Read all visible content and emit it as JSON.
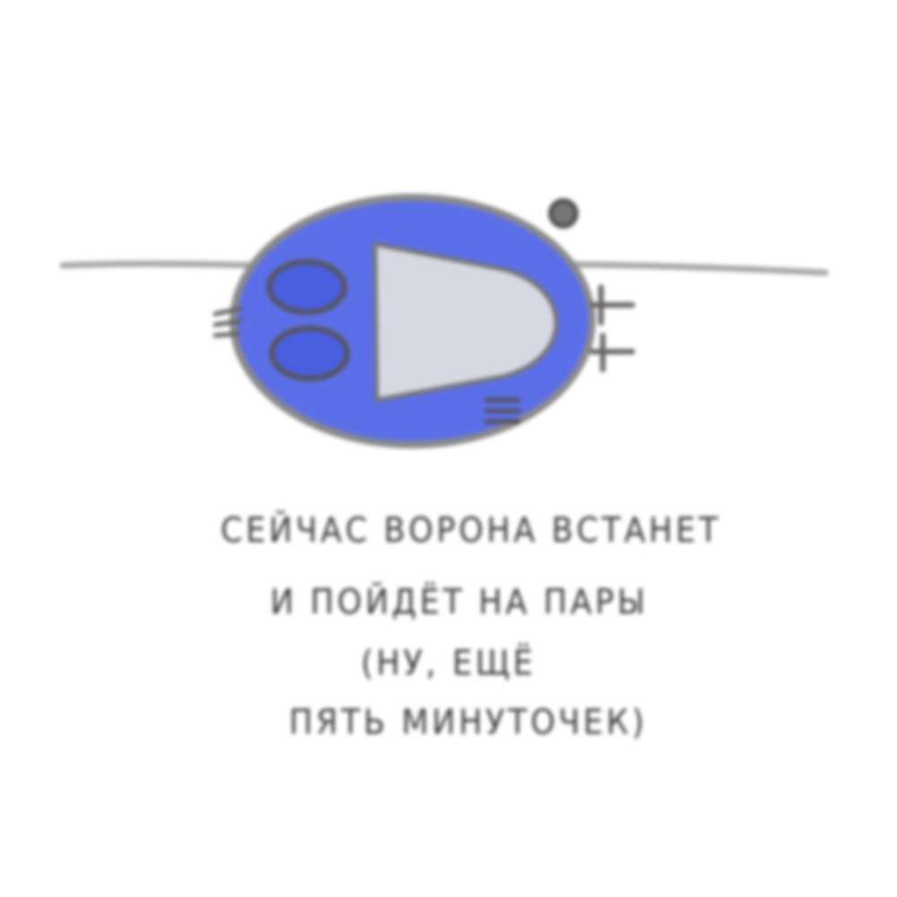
{
  "illustration": {
    "figure_color": "#5b6fe8",
    "figure_dark_color": "#3f4fc8",
    "beak_color": "#d6d8e2",
    "outline_color": "#8a8a8a",
    "wire_color": "#a8a8a8"
  },
  "caption": {
    "line1": "СЕЙЧАС ВОРОНА ВСТАНЕТ",
    "line2": "И ПОЙДЁТ НА ПАРЫ",
    "line3": "(НУ, ЕЩЁ",
    "line4": "ПЯТЬ МИНУТОЧЕК)"
  }
}
